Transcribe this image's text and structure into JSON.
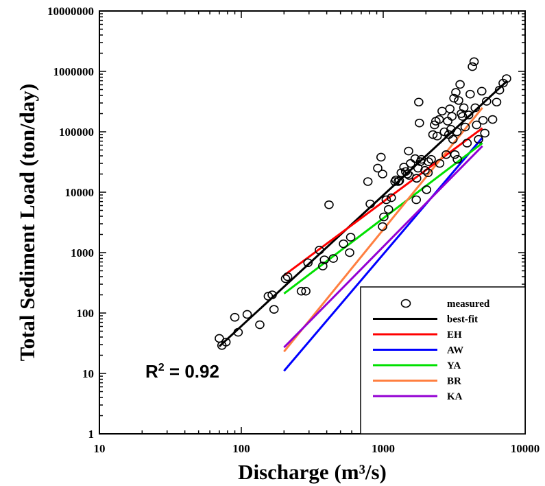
{
  "chart_data": {
    "type": "scatter",
    "title": "",
    "xlabel": "Discharge (m³/s)",
    "ylabel": "Total Sediment Load (ton/day)",
    "x_scale": "log",
    "y_scale": "log",
    "xlim": [
      10,
      10000
    ],
    "ylim": [
      1,
      10000000
    ],
    "x_tick_labels": [
      "10",
      "100",
      "1000",
      "10000"
    ],
    "y_tick_labels": [
      "1",
      "10",
      "100",
      "1000",
      "10000",
      "100000",
      "1000000",
      "10000000"
    ],
    "grid": false,
    "legend_position": "bottom-right",
    "annotation": {
      "prefix": "R",
      "sup": "2",
      "suffix": " = 0.92"
    },
    "measured": {
      "name": "measured",
      "marker": "open-circle",
      "color": "#000000",
      "points": [
        [
          70,
          38
        ],
        [
          73,
          29
        ],
        [
          78,
          33
        ],
        [
          90,
          85
        ],
        [
          95,
          48
        ],
        [
          110,
          95
        ],
        [
          135,
          64
        ],
        [
          155,
          190
        ],
        [
          165,
          200
        ],
        [
          170,
          115
        ],
        [
          205,
          370
        ],
        [
          212,
          400
        ],
        [
          265,
          230
        ],
        [
          285,
          230
        ],
        [
          295,
          680
        ],
        [
          355,
          1100
        ],
        [
          375,
          600
        ],
        [
          385,
          760
        ],
        [
          415,
          6200
        ],
        [
          445,
          800
        ],
        [
          525,
          1400
        ],
        [
          580,
          1000
        ],
        [
          590,
          1800
        ],
        [
          780,
          15000
        ],
        [
          810,
          6400
        ],
        [
          915,
          25000
        ],
        [
          965,
          38000
        ],
        [
          990,
          20000
        ],
        [
          990,
          2700
        ],
        [
          1010,
          3900
        ],
        [
          1050,
          7500
        ],
        [
          1090,
          5200
        ],
        [
          1140,
          8100
        ],
        [
          1210,
          15000
        ],
        [
          1230,
          16000
        ],
        [
          1275,
          15000
        ],
        [
          1340,
          21000
        ],
        [
          1400,
          26000
        ],
        [
          1440,
          22000
        ],
        [
          1480,
          20000
        ],
        [
          1510,
          48000
        ],
        [
          1560,
          30000
        ],
        [
          1680,
          36000
        ],
        [
          1720,
          17000
        ],
        [
          1710,
          7500
        ],
        [
          1760,
          25000
        ],
        [
          1780,
          310000
        ],
        [
          1800,
          140000
        ],
        [
          1830,
          32000
        ],
        [
          1860,
          35000
        ],
        [
          1970,
          23000
        ],
        [
          2020,
          11000
        ],
        [
          2070,
          21000
        ],
        [
          2180,
          35000
        ],
        [
          2240,
          90000
        ],
        [
          2300,
          130000
        ],
        [
          2350,
          150000
        ],
        [
          2400,
          85000
        ],
        [
          2500,
          30000
        ],
        [
          2600,
          220000
        ],
        [
          2700,
          100000
        ],
        [
          2780,
          42000
        ],
        [
          2850,
          150000
        ],
        [
          2900,
          90000
        ],
        [
          3000,
          110000
        ],
        [
          3050,
          180000
        ],
        [
          3100,
          75000
        ],
        [
          3150,
          360000
        ],
        [
          3250,
          450000
        ],
        [
          3310,
          100000
        ],
        [
          3400,
          330000
        ],
        [
          3480,
          610000
        ],
        [
          3550,
          200000
        ],
        [
          3620,
          180000
        ],
        [
          3700,
          250000
        ],
        [
          3780,
          120000
        ],
        [
          3900,
          65000
        ],
        [
          4000,
          190000
        ],
        [
          4100,
          420000
        ],
        [
          4250,
          1200000
        ],
        [
          4370,
          1450000
        ],
        [
          4450,
          250000
        ],
        [
          4550,
          130000
        ],
        [
          4700,
          75000
        ],
        [
          4950,
          470000
        ],
        [
          5050,
          155000
        ],
        [
          5200,
          95000
        ],
        [
          5350,
          320000
        ],
        [
          5900,
          160000
        ],
        [
          6300,
          310000
        ],
        [
          6600,
          490000
        ],
        [
          7000,
          640000
        ],
        [
          7400,
          760000
        ],
        [
          3200,
          42000
        ],
        [
          3330,
          35000
        ],
        [
          2950,
          240000
        ],
        [
          2480,
          160000
        ],
        [
          1520,
          19000
        ],
        [
          1300,
          15500
        ],
        [
          2080,
          32000
        ]
      ]
    },
    "series": [
      {
        "name": "best-fit",
        "color": "#000000",
        "x": [
          70,
          7500
        ],
        "y": [
          28,
          700000
        ]
      },
      {
        "name": "EH",
        "color": "#ff0000",
        "x": [
          200,
          5000
        ],
        "y": [
          420,
          115000
        ]
      },
      {
        "name": "AW",
        "color": "#0000ff",
        "x": [
          200,
          5000
        ],
        "y": [
          11,
          80000
        ]
      },
      {
        "name": "YA",
        "color": "#00e000",
        "x": [
          200,
          5000
        ],
        "y": [
          210,
          65000
        ]
      },
      {
        "name": "BR",
        "color": "#ff7f40",
        "x": [
          200,
          5000
        ],
        "y": [
          23,
          250000
        ]
      },
      {
        "name": "KA",
        "color": "#9400d3",
        "x": [
          200,
          5000
        ],
        "y": [
          27,
          58000
        ]
      }
    ]
  }
}
